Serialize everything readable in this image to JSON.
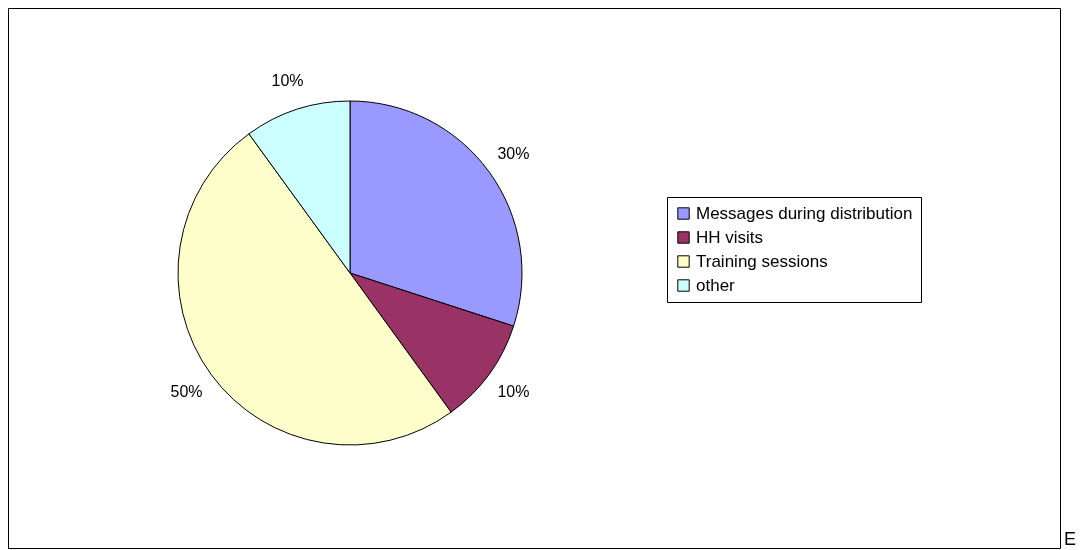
{
  "chart_data": {
    "type": "pie",
    "categories": [
      "Messages during distribution",
      "HH visits",
      "Training sessions",
      "other"
    ],
    "values": [
      30,
      10,
      50,
      10
    ],
    "colors": [
      "#9999ff",
      "#993366",
      "#ffffcc",
      "#ccffff"
    ],
    "value_labels": [
      "30%",
      "10%",
      "50%",
      "10%"
    ],
    "legend": "right",
    "annotations": [
      "E"
    ]
  }
}
